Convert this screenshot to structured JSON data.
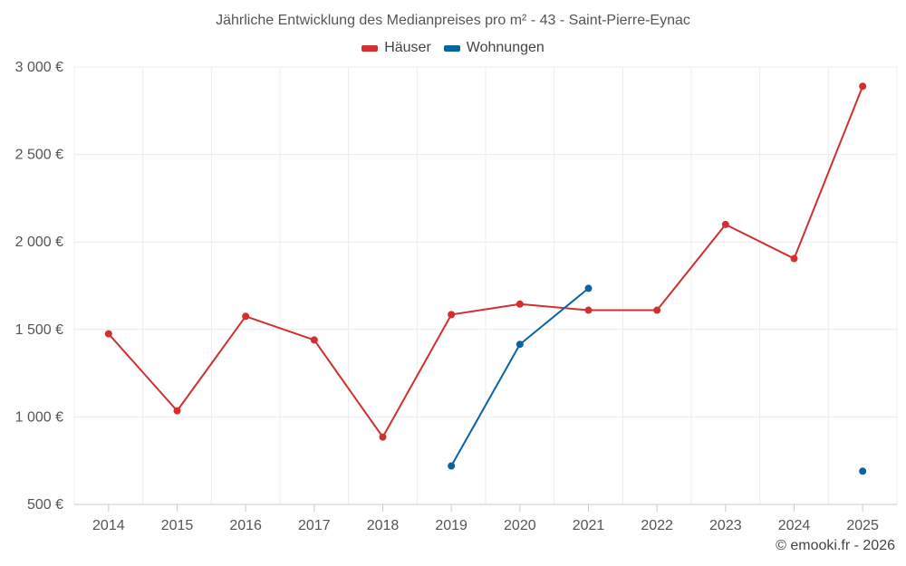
{
  "chart_data": {
    "type": "line",
    "title": "Jährliche Entwicklung des Medianpreises pro m² - 43 - Saint-Pierre-Eynac",
    "categories": [
      "2014",
      "2015",
      "2016",
      "2017",
      "2018",
      "2019",
      "2020",
      "2021",
      "2022",
      "2023",
      "2024",
      "2025"
    ],
    "y_ticks": [
      500,
      1000,
      1500,
      2000,
      2500,
      3000
    ],
    "y_tick_labels": [
      "500 €",
      "1 000 €",
      "1 500 €",
      "2 000 €",
      "2 500 €",
      "3 000 €"
    ],
    "ylim": [
      500,
      3000
    ],
    "xlabel": "",
    "ylabel": "",
    "grid": true,
    "legend_position": "top-center",
    "series": [
      {
        "name": "Häuser",
        "color": "#d32f2f",
        "values": [
          1475,
          1035,
          1575,
          1440,
          885,
          1585,
          1645,
          1610,
          1610,
          2100,
          1905,
          2890
        ]
      },
      {
        "name": "Wohnungen",
        "color": "#0b64a0",
        "values": [
          null,
          null,
          null,
          null,
          null,
          720,
          1415,
          1735,
          null,
          null,
          null,
          690
        ]
      }
    ]
  },
  "credit": "© emooki.fr - 2026"
}
